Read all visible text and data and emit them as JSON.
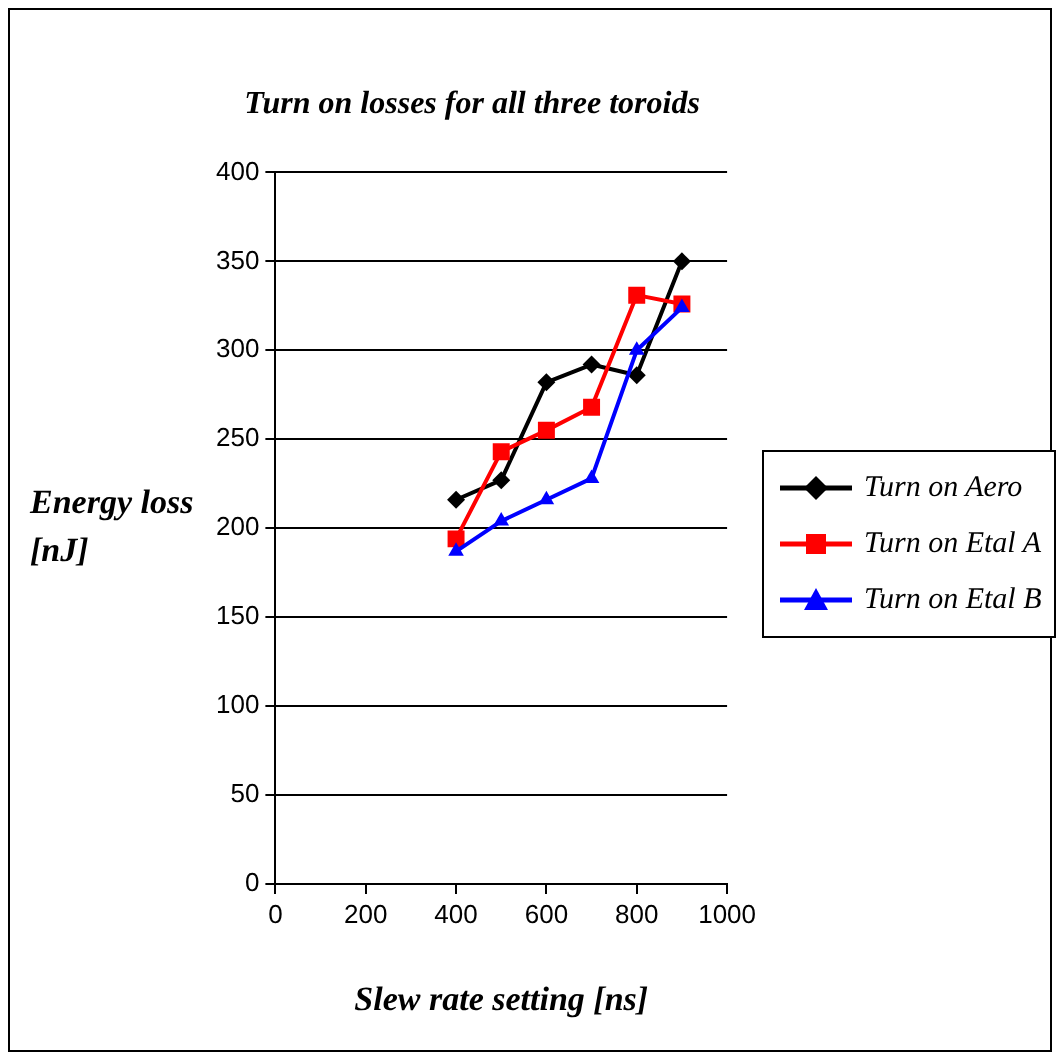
{
  "chart_data": {
    "type": "line",
    "title": "Turn on losses for all three toroids",
    "xlabel": "Slew rate setting [ns]",
    "ylabel": "Energy loss [nJ]",
    "x": [
      400,
      500,
      600,
      700,
      800,
      900
    ],
    "series": [
      {
        "name": "Turn on Aero",
        "color": "#000000",
        "marker": "diamond",
        "values": [
          216,
          227,
          282,
          292,
          286,
          350
        ]
      },
      {
        "name": "Turn on Etal A",
        "color": "#ff0000",
        "marker": "square",
        "values": [
          194,
          243,
          255,
          268,
          331,
          326
        ]
      },
      {
        "name": "Turn on Etal B",
        "color": "#0000ff",
        "marker": "triangle",
        "values": [
          187,
          204,
          216,
          228,
          300,
          324
        ]
      }
    ],
    "xlim": [
      0,
      1000
    ],
    "xticks": [
      0,
      200,
      400,
      600,
      800,
      1000
    ],
    "ylim": [
      0,
      400
    ],
    "yticks": [
      0,
      50,
      100,
      150,
      200,
      250,
      300,
      350,
      400
    ],
    "grid": "y",
    "legend": "right",
    "line_style": "solid"
  }
}
